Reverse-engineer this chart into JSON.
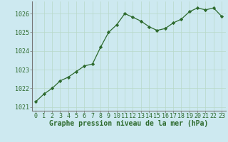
{
  "x": [
    0,
    1,
    2,
    3,
    4,
    5,
    6,
    7,
    8,
    9,
    10,
    11,
    12,
    13,
    14,
    15,
    16,
    17,
    18,
    19,
    20,
    21,
    22,
    23
  ],
  "y": [
    1021.3,
    1021.7,
    1022.0,
    1022.4,
    1022.6,
    1022.9,
    1023.2,
    1023.3,
    1024.2,
    1025.0,
    1025.4,
    1026.0,
    1025.8,
    1025.6,
    1025.3,
    1025.1,
    1025.2,
    1025.5,
    1025.7,
    1026.1,
    1026.3,
    1026.2,
    1026.3,
    1025.85
  ],
  "line_color": "#2d6a2d",
  "marker_color": "#2d6a2d",
  "bg_color": "#cde9f0",
  "grid_color": "#b8d8c8",
  "ylabel_ticks": [
    1021,
    1022,
    1023,
    1024,
    1025,
    1026
  ],
  "xlabel": "Graphe pression niveau de la mer (hPa)",
  "xlim": [
    -0.5,
    23.5
  ],
  "ylim": [
    1020.8,
    1026.65
  ],
  "tick_fontsize": 6,
  "xlabel_fontsize": 7
}
